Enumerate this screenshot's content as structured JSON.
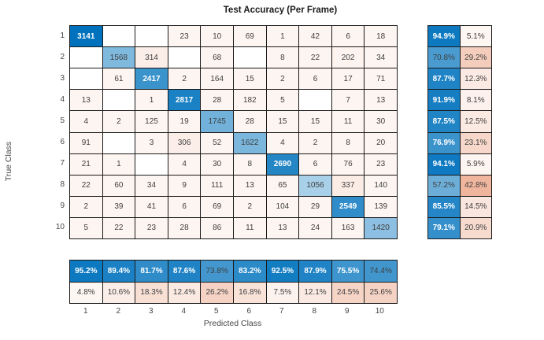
{
  "chart_data": {
    "type": "heatmap",
    "title": "Test Accuracy (Per Frame)",
    "xlabel": "Predicted Class",
    "ylabel": "True Class",
    "categories": [
      "1",
      "2",
      "3",
      "4",
      "5",
      "6",
      "7",
      "8",
      "9",
      "10"
    ],
    "matrix": [
      [
        3141,
        0,
        0,
        23,
        10,
        69,
        1,
        42,
        6,
        18
      ],
      [
        0,
        1568,
        314,
        0,
        68,
        0,
        8,
        22,
        202,
        34
      ],
      [
        0,
        61,
        2417,
        2,
        164,
        15,
        2,
        6,
        17,
        71
      ],
      [
        13,
        0,
        1,
        2817,
        28,
        182,
        5,
        0,
        7,
        13
      ],
      [
        4,
        2,
        125,
        19,
        1745,
        28,
        15,
        15,
        11,
        30
      ],
      [
        91,
        0,
        3,
        306,
        52,
        1622,
        4,
        2,
        8,
        20
      ],
      [
        21,
        1,
        0,
        4,
        30,
        8,
        2690,
        6,
        76,
        23
      ],
      [
        22,
        60,
        34,
        9,
        111,
        13,
        65,
        1056,
        337,
        140
      ],
      [
        2,
        39,
        41,
        6,
        69,
        2,
        104,
        29,
        2549,
        139
      ],
      [
        5,
        22,
        23,
        28,
        86,
        11,
        13,
        24,
        163,
        1420
      ]
    ],
    "row_summary": {
      "recall_pct": [
        94.9,
        70.8,
        87.7,
        91.9,
        87.5,
        76.9,
        94.1,
        57.2,
        85.5,
        79.1
      ],
      "miss_pct": [
        5.1,
        29.2,
        12.3,
        8.1,
        12.5,
        23.1,
        5.9,
        42.8,
        14.5,
        20.9
      ]
    },
    "col_summary": {
      "precision_pct": [
        95.2,
        89.4,
        81.7,
        87.6,
        73.8,
        83.2,
        92.5,
        87.9,
        75.5,
        74.4
      ],
      "fdr_pct": [
        4.8,
        10.6,
        18.3,
        12.4,
        26.2,
        16.8,
        7.5,
        12.1,
        24.5,
        25.6
      ]
    },
    "colors": {
      "diagonal": "#0072BD",
      "off_diagonal": "#D95319",
      "grid_line": "#1a1a1a",
      "text_dark": "#3f3f3f",
      "text_light": "#ffffff"
    },
    "legend_position": "none",
    "grid": true
  }
}
